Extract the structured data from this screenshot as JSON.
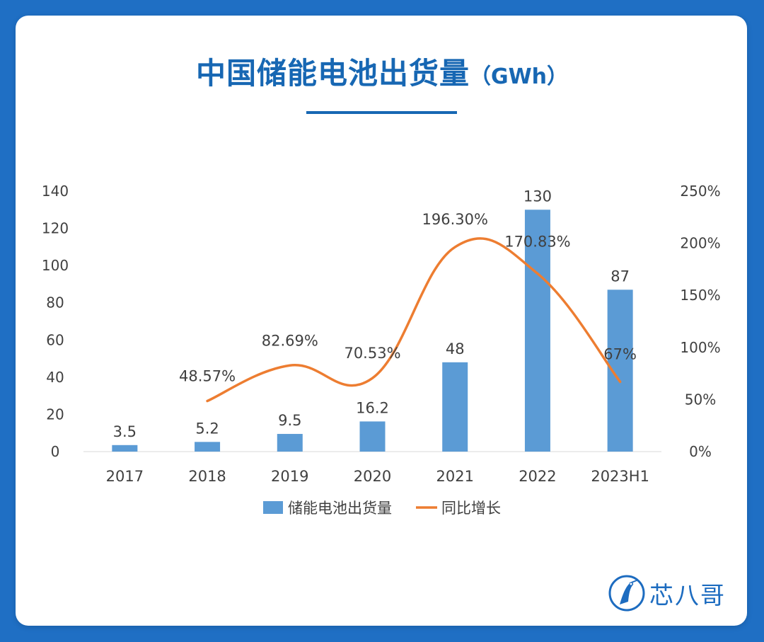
{
  "header": {
    "title": "中国储能电池出货量",
    "unit": "（GWh）"
  },
  "brand": {
    "name": "芯八哥",
    "icon": "bird-logo-icon",
    "color": "#1d6cc0"
  },
  "colors": {
    "background": "#1f6fc4",
    "title": "#1767b3",
    "bar": "#5b9bd5",
    "line": "#ed7d31",
    "text": "#404040"
  },
  "chart_data": {
    "type": "bar",
    "categories": [
      "2017",
      "2018",
      "2019",
      "2020",
      "2021",
      "2022",
      "2023H1"
    ],
    "series": [
      {
        "name": "储能电池出货量",
        "type": "bar",
        "axis": "left",
        "values": [
          3.5,
          5.2,
          9.5,
          16.2,
          48,
          130,
          87
        ],
        "labels": [
          "3.5",
          "5.2",
          "9.5",
          "16.2",
          "48",
          "130",
          "87"
        ]
      },
      {
        "name": "同比增长",
        "type": "line",
        "axis": "right",
        "values": [
          null,
          48.57,
          82.69,
          70.53,
          196.3,
          170.83,
          67
        ],
        "labels": [
          null,
          "48.57%",
          "82.69%",
          "70.53%",
          "196.30%",
          "170.83%",
          "67%"
        ]
      }
    ],
    "y_left": {
      "min": 0,
      "max": 140,
      "ticks": [
        "0",
        "20",
        "40",
        "60",
        "80",
        "100",
        "120",
        "140"
      ]
    },
    "y_right": {
      "min": 0,
      "max": 250,
      "ticks": [
        "0%",
        "50%",
        "100%",
        "150%",
        "200%",
        "250%"
      ]
    },
    "grid": false,
    "legend": "bottom"
  }
}
